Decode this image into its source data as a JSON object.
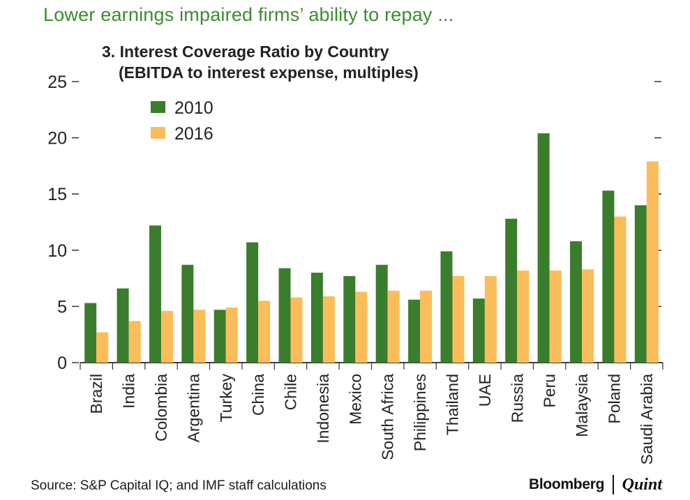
{
  "headline": "Lower earnings impaired firms’ ability to repay ...",
  "source": "Source: S&P Capital IQ; and IMF staff calculations",
  "brand": {
    "main": "Bloomberg",
    "sub": "Quint"
  },
  "colors": {
    "series_2010": "#3a7d2c",
    "series_2016": "#fbbd5a",
    "headline": "#3d8b2f"
  },
  "chart_data": {
    "type": "bar",
    "title_line1": "3. Interest Coverage Ratio by Country",
    "title_line2": "(EBITDA to interest expense, multiples)",
    "xlabel": "",
    "ylabel": "",
    "ylim": [
      0,
      25
    ],
    "yticks": [
      0,
      5,
      10,
      15,
      20,
      25
    ],
    "legend_position": "top-left",
    "grid": false,
    "categories": [
      "Brazil",
      "India",
      "Colombia",
      "Argentina",
      "Turkey",
      "China",
      "Chile",
      "Indonesia",
      "Mexico",
      "South Africa",
      "Philippines",
      "Thailand",
      "UAE",
      "Russia",
      "Peru",
      "Malaysia",
      "Poland",
      "Saudi Arabia"
    ],
    "series": [
      {
        "name": "2010",
        "values": [
          5.3,
          6.6,
          12.2,
          8.7,
          4.7,
          10.7,
          8.4,
          8.0,
          7.7,
          8.7,
          5.6,
          9.9,
          5.7,
          12.8,
          20.4,
          10.8,
          15.3,
          14.0
        ]
      },
      {
        "name": "2016",
        "values": [
          2.7,
          3.7,
          4.6,
          4.7,
          4.9,
          5.5,
          5.8,
          5.9,
          6.3,
          6.4,
          6.4,
          7.7,
          7.7,
          8.2,
          8.2,
          8.3,
          13.0,
          17.9
        ]
      }
    ]
  }
}
